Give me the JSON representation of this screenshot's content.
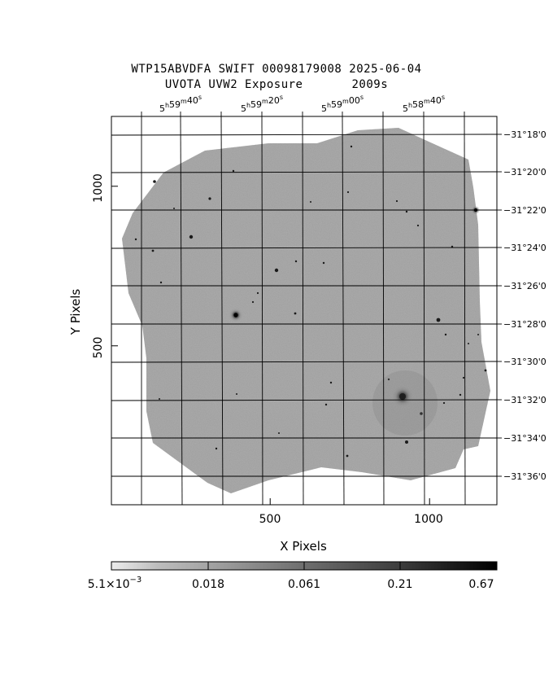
{
  "title": {
    "line1": "WTP15ABVDFA SWIFT 00098179008 2025-06-04",
    "line2_label": "UVOTA UVW2 Exposure",
    "line2_value": "2009s"
  },
  "axes": {
    "x_label": "X Pixels",
    "y_label": "Y Pixels",
    "x_ticks": [
      "500",
      "1000"
    ],
    "y_ticks": [
      "500",
      "1000"
    ]
  },
  "ra_ticks": [
    {
      "h": "5",
      "m": "59",
      "s": "40"
    },
    {
      "h": "5",
      "m": "59",
      "s": "20"
    },
    {
      "h": "5",
      "m": "59",
      "s": "00"
    },
    {
      "h": "5",
      "m": "58",
      "s": "40"
    }
  ],
  "dec_ticks": [
    "−31°18'0",
    "−31°20'0",
    "−31°22'0",
    "−31°24'0",
    "−31°26'0",
    "−31°28'0",
    "−31°30'0",
    "−31°32'0",
    "−31°34'0",
    "−31°36'0"
  ],
  "colorbar": {
    "labels": [
      {
        "base": "5.1×10",
        "exp": "−3"
      },
      {
        "base": "0.018",
        "exp": ""
      },
      {
        "base": "0.061",
        "exp": ""
      },
      {
        "base": "0.21",
        "exp": ""
      },
      {
        "base": "0.67",
        "exp": ""
      }
    ]
  },
  "colors": {
    "background": "#ffffff",
    "frame": "#000000",
    "image_noise": "#888888"
  }
}
